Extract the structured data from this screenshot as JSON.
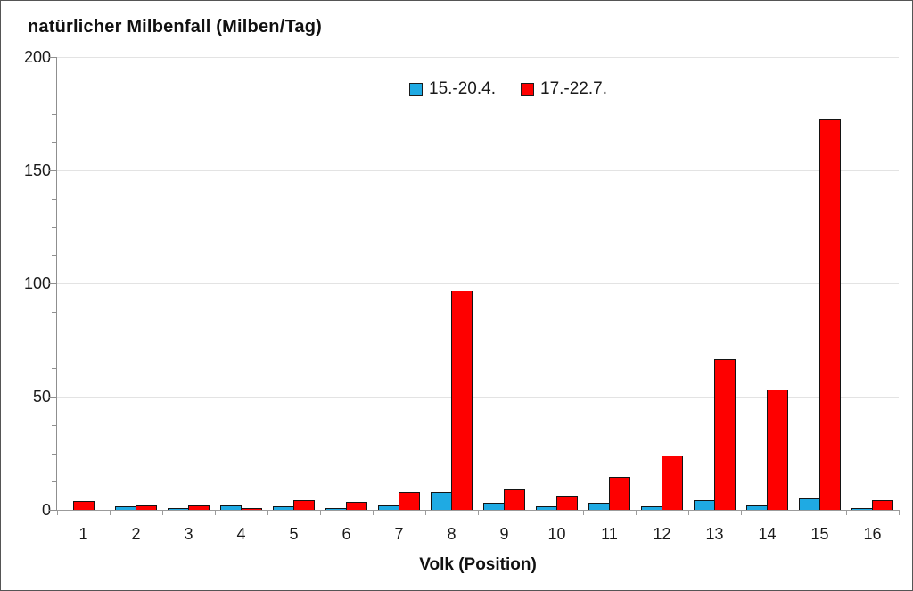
{
  "chart_data": {
    "type": "bar",
    "title": "natürlicher Milbenfall (Milben/Tag)",
    "xlabel": "Volk (Position)",
    "ylabel": "natürlicher Milbenfall (Milben/Tag)",
    "categories": [
      "1",
      "2",
      "3",
      "4",
      "5",
      "6",
      "7",
      "8",
      "9",
      "10",
      "11",
      "12",
      "13",
      "14",
      "15",
      "16"
    ],
    "series": [
      {
        "name": "15.-20.4.",
        "color": "#1FAAE3",
        "values": [
          0,
          1.5,
          0.5,
          2,
          1.5,
          0.5,
          2,
          8,
          3,
          1.5,
          3,
          1.5,
          4.5,
          2,
          5,
          0.5
        ]
      },
      {
        "name": "17.-22.7.",
        "color": "#FE0000",
        "values": [
          4,
          2,
          2,
          0.5,
          4.5,
          3.5,
          8,
          97,
          9,
          6.5,
          14.5,
          24,
          66.5,
          53,
          172.5,
          4.5
        ]
      }
    ],
    "ylim": [
      0,
      200
    ],
    "yticks": [
      0,
      50,
      100,
      150,
      200
    ],
    "y_minor_tick_step": 12.5,
    "grid": true,
    "legend_position": "top-center",
    "bar_border_color": "#141414",
    "axis_color": "#8f8f8f",
    "gridline_color": "#e3e3e3"
  }
}
